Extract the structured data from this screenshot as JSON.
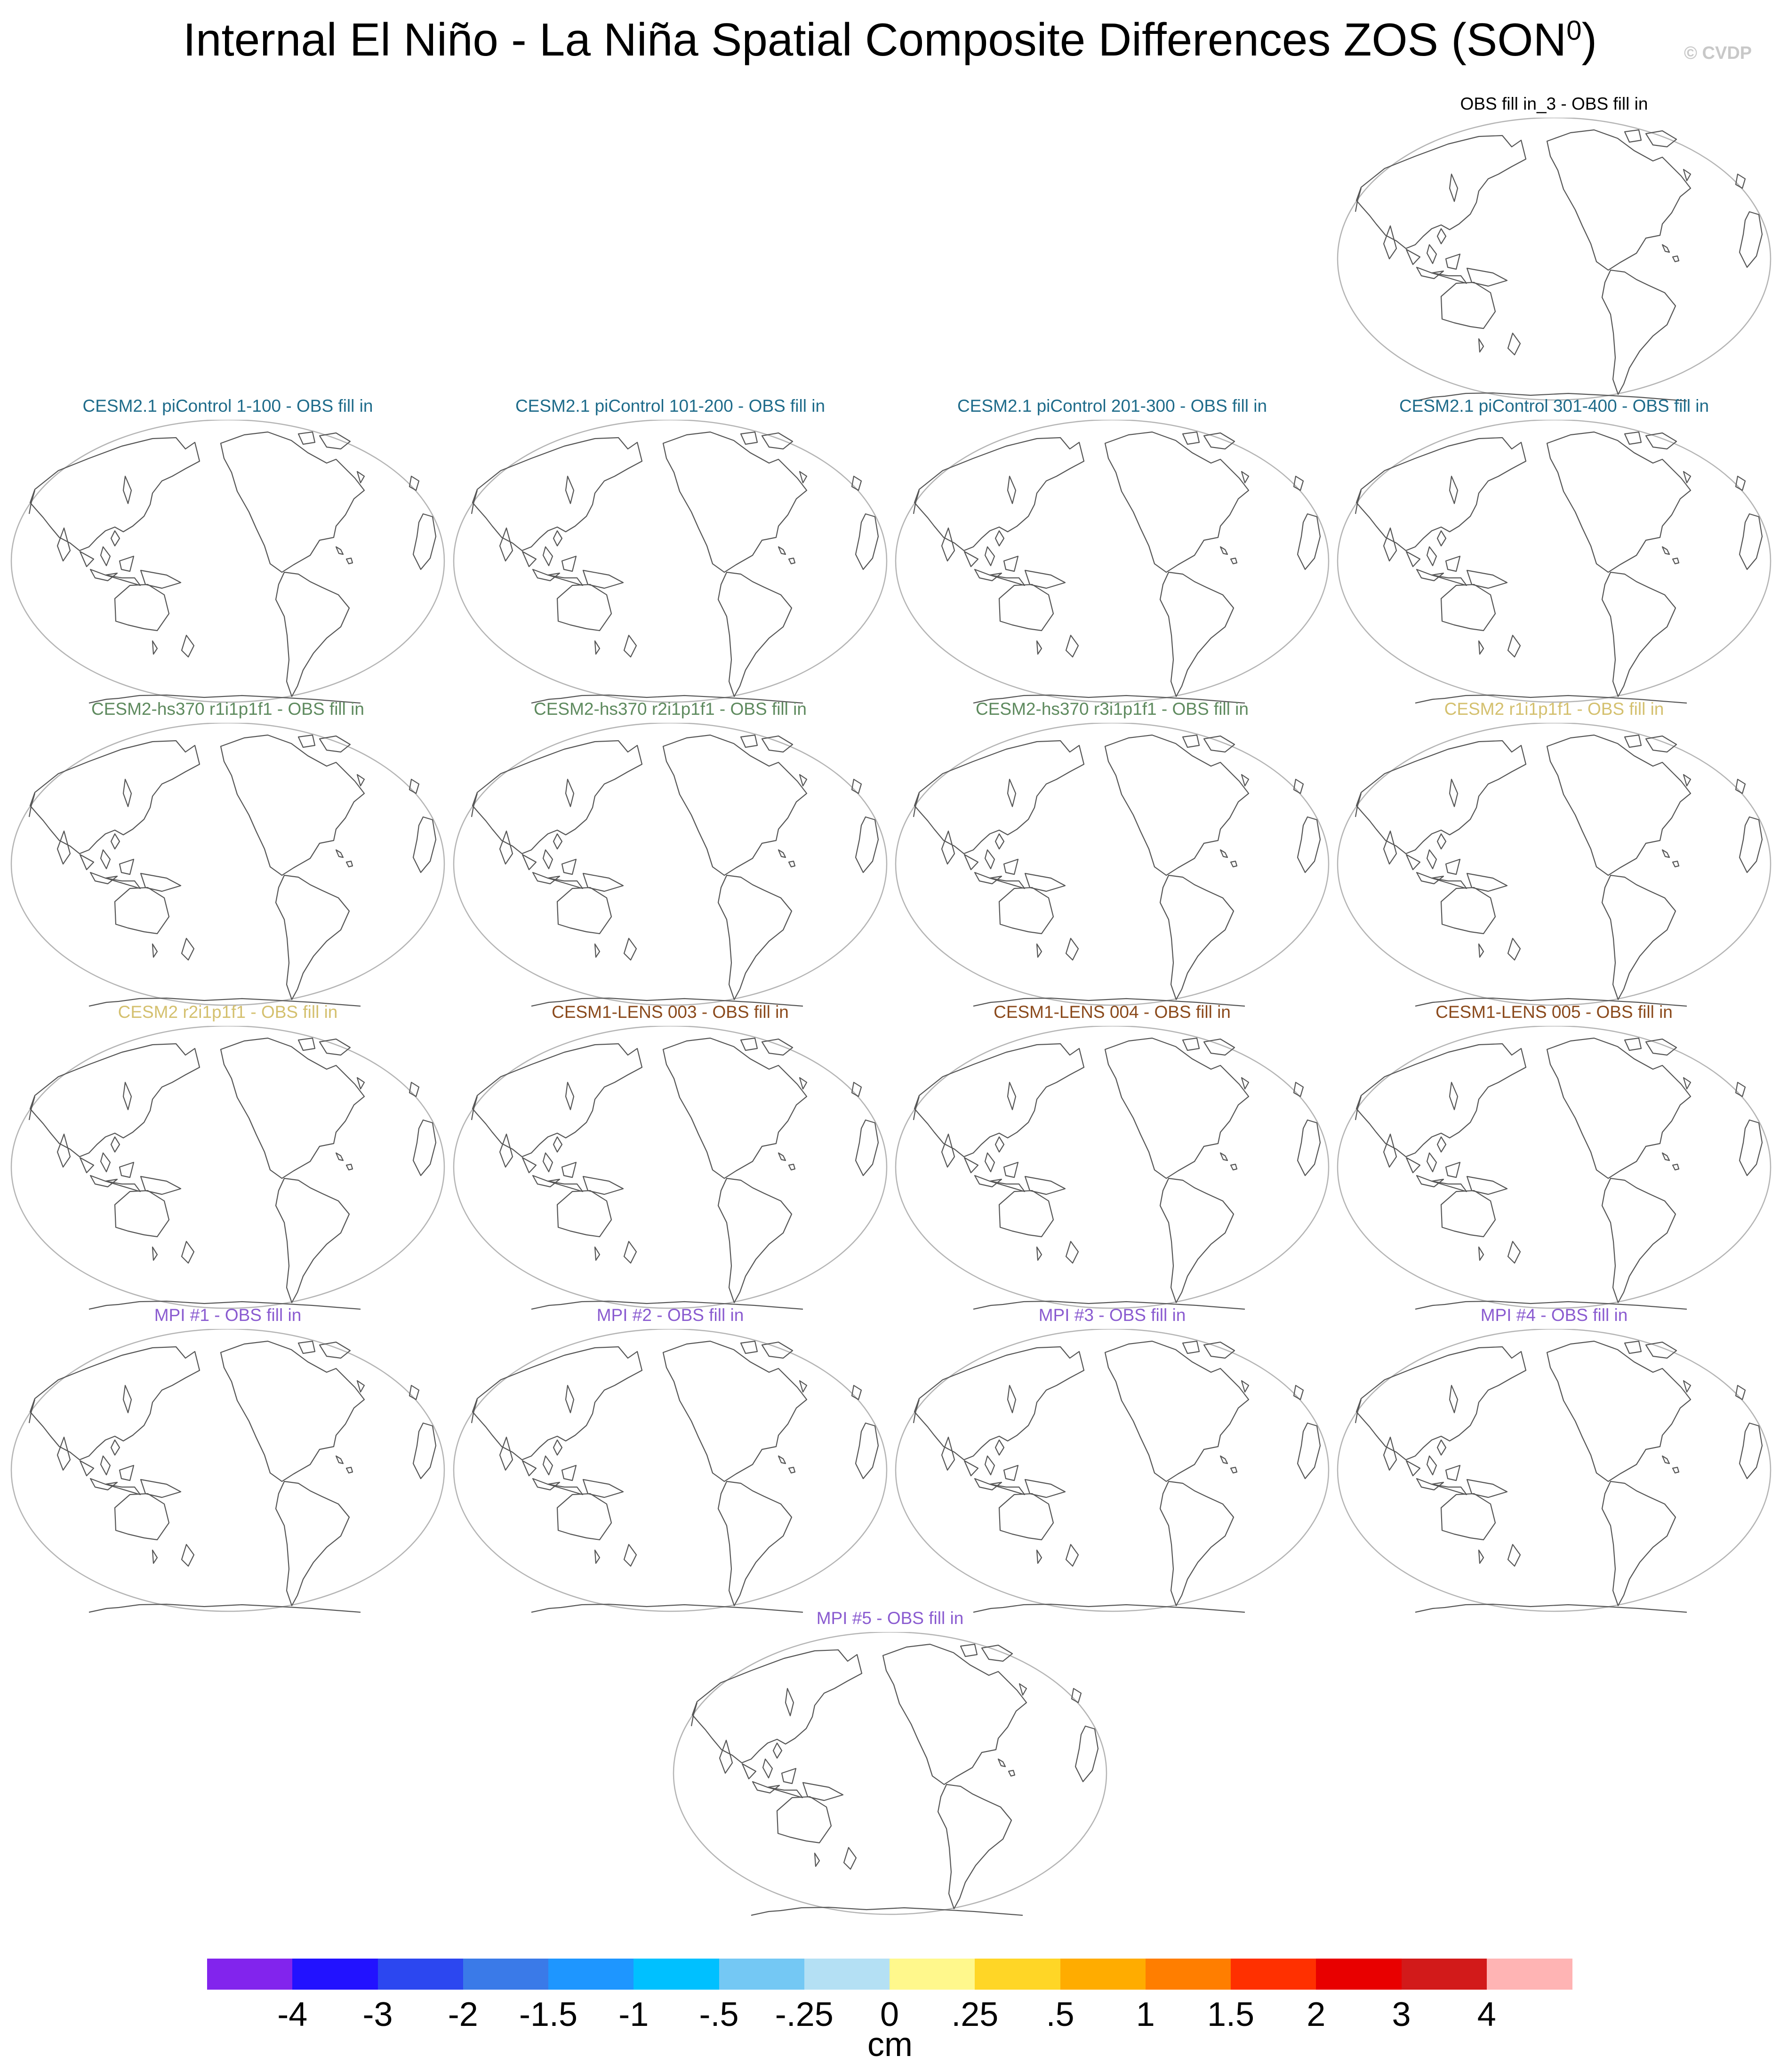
{
  "figure": {
    "title_main": "Internal El Niño - La Niña Spatial Composite Differences ZOS (SON",
    "title_sup": "0",
    "title_end": ")",
    "copyright": "© CVDP"
  },
  "panels": [
    {
      "title": "OBS fill in_3 - OBS fill in",
      "color": "#000000"
    },
    {
      "title": "CESM2.1 piControl 1-100 - OBS fill in",
      "color": "#1e6b8a"
    },
    {
      "title": "CESM2.1 piControl 101-200 - OBS fill in",
      "color": "#1e6b8a"
    },
    {
      "title": "CESM2.1 piControl 201-300 - OBS fill in",
      "color": "#1e6b8a"
    },
    {
      "title": "CESM2.1 piControl 301-400 - OBS fill in",
      "color": "#1e6b8a"
    },
    {
      "title": "CESM2-hs370 r1i1p1f1 - OBS fill in",
      "color": "#5e8a5e"
    },
    {
      "title": "CESM2-hs370 r2i1p1f1 - OBS fill in",
      "color": "#5e8a5e"
    },
    {
      "title": "CESM2-hs370 r3i1p1f1 - OBS fill in",
      "color": "#5e8a5e"
    },
    {
      "title": "CESM2 r1i1p1f1 - OBS fill in",
      "color": "#d4c06e"
    },
    {
      "title": "CESM2 r2i1p1f1 - OBS fill in",
      "color": "#d4c06e"
    },
    {
      "title": "CESM1-LENS 003 - OBS fill in",
      "color": "#8b4a1c"
    },
    {
      "title": "CESM1-LENS 004 - OBS fill in",
      "color": "#8b4a1c"
    },
    {
      "title": "CESM1-LENS 005 - OBS fill in",
      "color": "#8b4a1c"
    },
    {
      "title": "MPI #1 - OBS fill in",
      "color": "#8a5bd0"
    },
    {
      "title": "MPI #2 - OBS fill in",
      "color": "#8a5bd0"
    },
    {
      "title": "MPI #3 - OBS fill in",
      "color": "#8a5bd0"
    },
    {
      "title": "MPI #4 - OBS fill in",
      "color": "#8a5bd0"
    },
    {
      "title": "MPI #5 - OBS fill in",
      "color": "#8a5bd0"
    }
  ],
  "colorbar": {
    "ticks": [
      "-4",
      "-3",
      "-2",
      "-1.5",
      "-1",
      "-.5",
      "-.25",
      "0",
      ".25",
      ".5",
      "1",
      "1.5",
      "2",
      "3",
      "4"
    ],
    "colors": [
      "#8224ed",
      "#2212ff",
      "#2c47f0",
      "#3a7ae8",
      "#1e96ff",
      "#00c0ff",
      "#74c8f4",
      "#b4e0f4",
      "#fff88c",
      "#ffd626",
      "#ffac00",
      "#ff7e00",
      "#ff3000",
      "#e80000",
      "#d21a1a",
      "#ffb4b4"
    ],
    "units": "cm"
  }
}
